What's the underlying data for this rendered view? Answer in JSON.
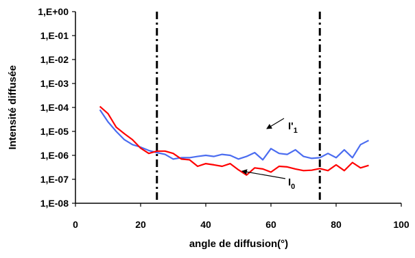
{
  "chart_data": {
    "type": "line",
    "title": "",
    "xlabel": "angle de diffusion(°)",
    "ylabel": "Intensité diffusée",
    "xlim": [
      0,
      100
    ],
    "ylim": [
      1e-08,
      1
    ],
    "yscale": "log",
    "grid": false,
    "legend": "none",
    "x_ticks": [
      {
        "value": 0,
        "label": "0"
      },
      {
        "value": 20,
        "label": "20"
      },
      {
        "value": 40,
        "label": "40"
      },
      {
        "value": 60,
        "label": "60"
      },
      {
        "value": 80,
        "label": "80"
      },
      {
        "value": 100,
        "label": "100"
      }
    ],
    "y_ticks": [
      {
        "value": 1,
        "label": "1,E+00"
      },
      {
        "value": 0.1,
        "label": "1,E-01"
      },
      {
        "value": 0.01,
        "label": "1,E-02"
      },
      {
        "value": 0.001,
        "label": "1,E-03"
      },
      {
        "value": 0.0001,
        "label": "1,E-04"
      },
      {
        "value": 1e-05,
        "label": "1,E-05"
      },
      {
        "value": 1e-06,
        "label": "1,E-06"
      },
      {
        "value": 1e-07,
        "label": "1,E-07"
      },
      {
        "value": 1e-08,
        "label": "1,E-08"
      }
    ],
    "vlines": [
      25,
      75
    ],
    "series": [
      {
        "name": "I'1",
        "color": "#4a6cf0",
        "x": [
          7.5,
          10,
          12.5,
          15,
          17.5,
          20,
          22.5,
          25,
          27.5,
          30,
          32.5,
          35,
          37.5,
          40,
          42.5,
          45,
          47.5,
          50,
          52.5,
          55,
          57.5,
          60,
          62.5,
          65,
          67.5,
          70,
          72.5,
          75,
          77.5,
          80,
          82.5,
          85,
          87.5,
          90
        ],
        "y": [
          8e-05,
          2.5e-05,
          1e-05,
          4.5e-06,
          2.8e-06,
          2.2e-06,
          1.6e-06,
          1.3e-06,
          1.1e-06,
          7e-07,
          8e-07,
          8e-07,
          9e-07,
          1e-06,
          9e-07,
          1.1e-06,
          1e-06,
          7e-07,
          9e-07,
          1.3e-06,
          6.5e-07,
          1.9e-06,
          1.2e-06,
          1.1e-06,
          1.7e-06,
          9e-07,
          7.5e-07,
          8e-07,
          1.2e-06,
          8e-07,
          1.7e-06,
          8e-07,
          2.8e-06,
          4.2e-06
        ]
      },
      {
        "name": "I0",
        "color": "#ff0000",
        "x": [
          7.5,
          10,
          12.5,
          15,
          17.5,
          20,
          22.5,
          25,
          27.5,
          30,
          32.5,
          35,
          37.5,
          40,
          42.5,
          45,
          47.5,
          50,
          52.5,
          55,
          57.5,
          60,
          62.5,
          65,
          67.5,
          70,
          72.5,
          75,
          77.5,
          80,
          82.5,
          85,
          87.5,
          90
        ],
        "y": [
          0.00011,
          5.5e-05,
          1.5e-05,
          8e-06,
          4.5e-06,
          2e-06,
          1.2e-06,
          1.5e-06,
          1.5e-06,
          1.2e-06,
          7e-07,
          6.5e-07,
          3.5e-07,
          4.5e-07,
          4e-07,
          3.5e-07,
          4.5e-07,
          2.5e-07,
          1.5e-07,
          3e-07,
          2.7e-07,
          2e-07,
          3.5e-07,
          3.3e-07,
          2.7e-07,
          2.3e-07,
          2.4e-07,
          2.8e-07,
          2.3e-07,
          4e-07,
          2.3e-07,
          5e-07,
          3e-07,
          3.8e-07
        ]
      }
    ],
    "annotations": [
      {
        "text": "I'",
        "sub": "1",
        "target_series": "I'1",
        "target_x": 57.3
      },
      {
        "text": "I",
        "sub": "0",
        "target_series": "I0",
        "target_x": 50.3
      }
    ]
  }
}
